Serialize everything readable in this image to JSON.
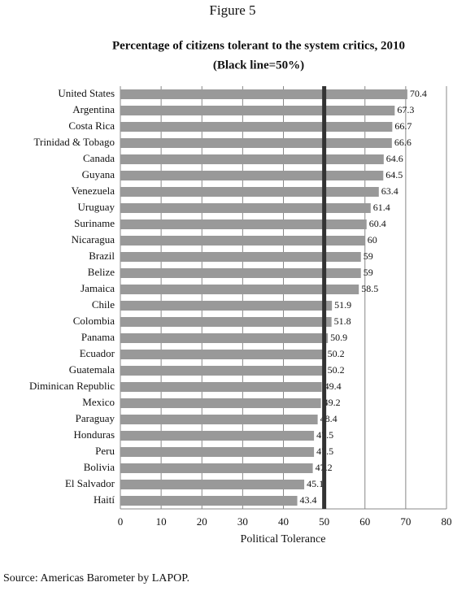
{
  "chart_data": {
    "type": "barh",
    "figure_label": "Figure 5",
    "title": "Percentage of citizens tolerant to the system critics, 2010",
    "subtitle": "(Black line=50%)",
    "x_label": "Political Tolerance",
    "source": "Source: Americas Barometer by LAPOP.",
    "categories": [
      "United States",
      "Argentina",
      "Costa Rica",
      "Trinidad & Tobago",
      "Canada",
      "Guyana",
      "Venezuela",
      "Uruguay",
      "Suriname",
      "Nicaragua",
      "Brazil",
      "Belize",
      "Jamaica",
      "Chile",
      "Colombia",
      "Panama",
      "Ecuador",
      "Guatemala",
      "Diminican Republic",
      "Mexico",
      "Paraguay",
      "Honduras",
      "Peru",
      "Bolivia",
      "El Salvador",
      "Haití"
    ],
    "values": [
      70.4,
      67.3,
      66.7,
      66.6,
      64.6,
      64.5,
      63.4,
      61.4,
      60.4,
      60,
      59,
      59,
      58.5,
      51.9,
      51.8,
      50.9,
      50.2,
      50.2,
      49.4,
      49.2,
      48.4,
      47.5,
      47.5,
      47.2,
      45.1,
      43.4
    ],
    "color": "#999999",
    "reference_line": 50,
    "reference_color": "#333333",
    "xlim": [
      0,
      80
    ],
    "xticks": [
      0,
      10,
      20,
      30,
      40,
      50,
      60,
      70,
      80
    ],
    "grid": true
  }
}
